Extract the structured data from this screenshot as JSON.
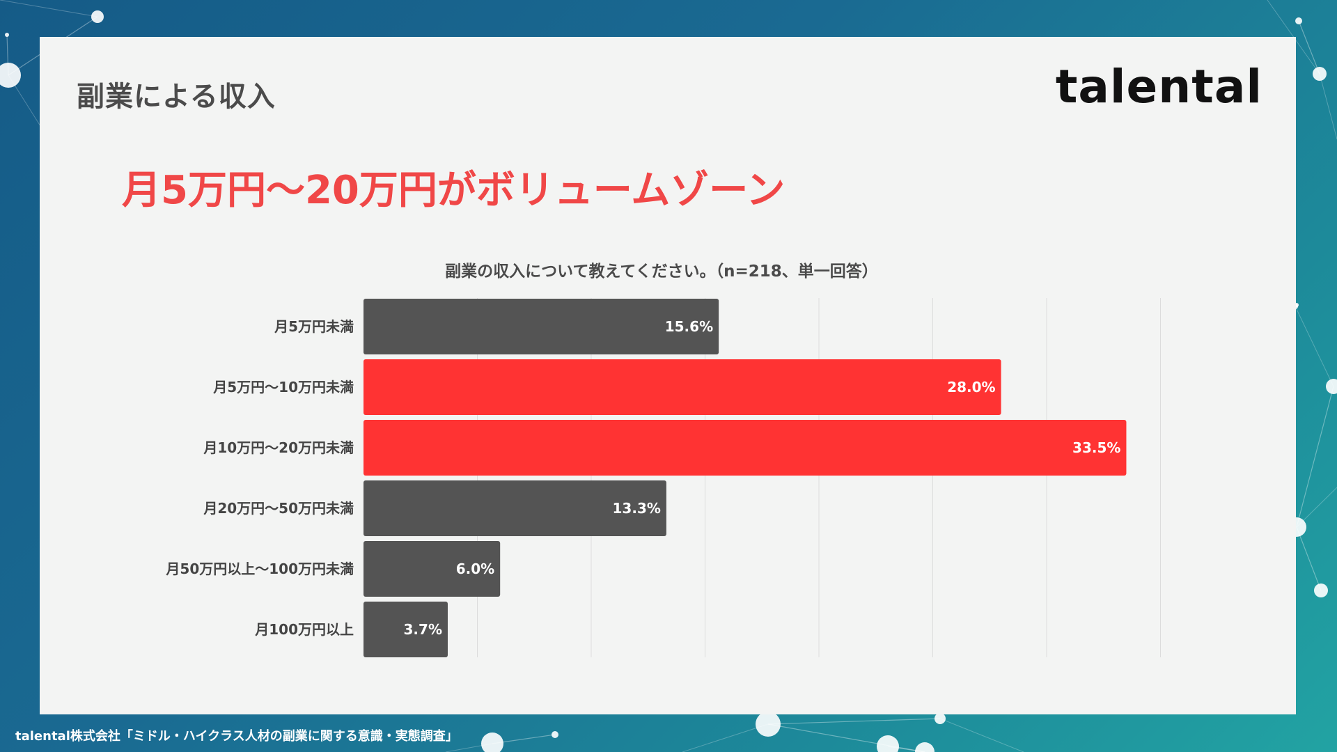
{
  "slide": {
    "section_title": "副業による収入",
    "logo_text": "talental",
    "headline": "月5万円〜20万円がボリュームゾーン",
    "footer": "talental株式会社「ミドル・ハイクラス人材の副業に関する意識・実態調査」"
  },
  "colors": {
    "highlight": "#ff3333",
    "default_bar": "#545454",
    "headline": "#f04747",
    "panel": "#f3f4f3"
  },
  "chart_data": {
    "type": "bar",
    "orientation": "horizontal",
    "title": "副業の収入について教えてください。（n=218、単一回答）",
    "categories": [
      "月5万円未満",
      "月5万円〜10万円未満",
      "月10万円〜20万円未満",
      "月20万円〜50万円未満",
      "月50万円以上〜100万円未満",
      "月100万円以上"
    ],
    "values": [
      15.6,
      28.0,
      33.5,
      13.3,
      6.0,
      3.7
    ],
    "value_labels": [
      "15.6%",
      "28.0%",
      "33.5%",
      "13.3%",
      "6.0%",
      "3.7%"
    ],
    "highlighted": [
      false,
      true,
      true,
      false,
      false,
      false
    ],
    "unit": "%",
    "xlim": [
      0,
      35
    ],
    "grid": true,
    "gridline_step": 5,
    "xlabel": "",
    "ylabel": ""
  }
}
